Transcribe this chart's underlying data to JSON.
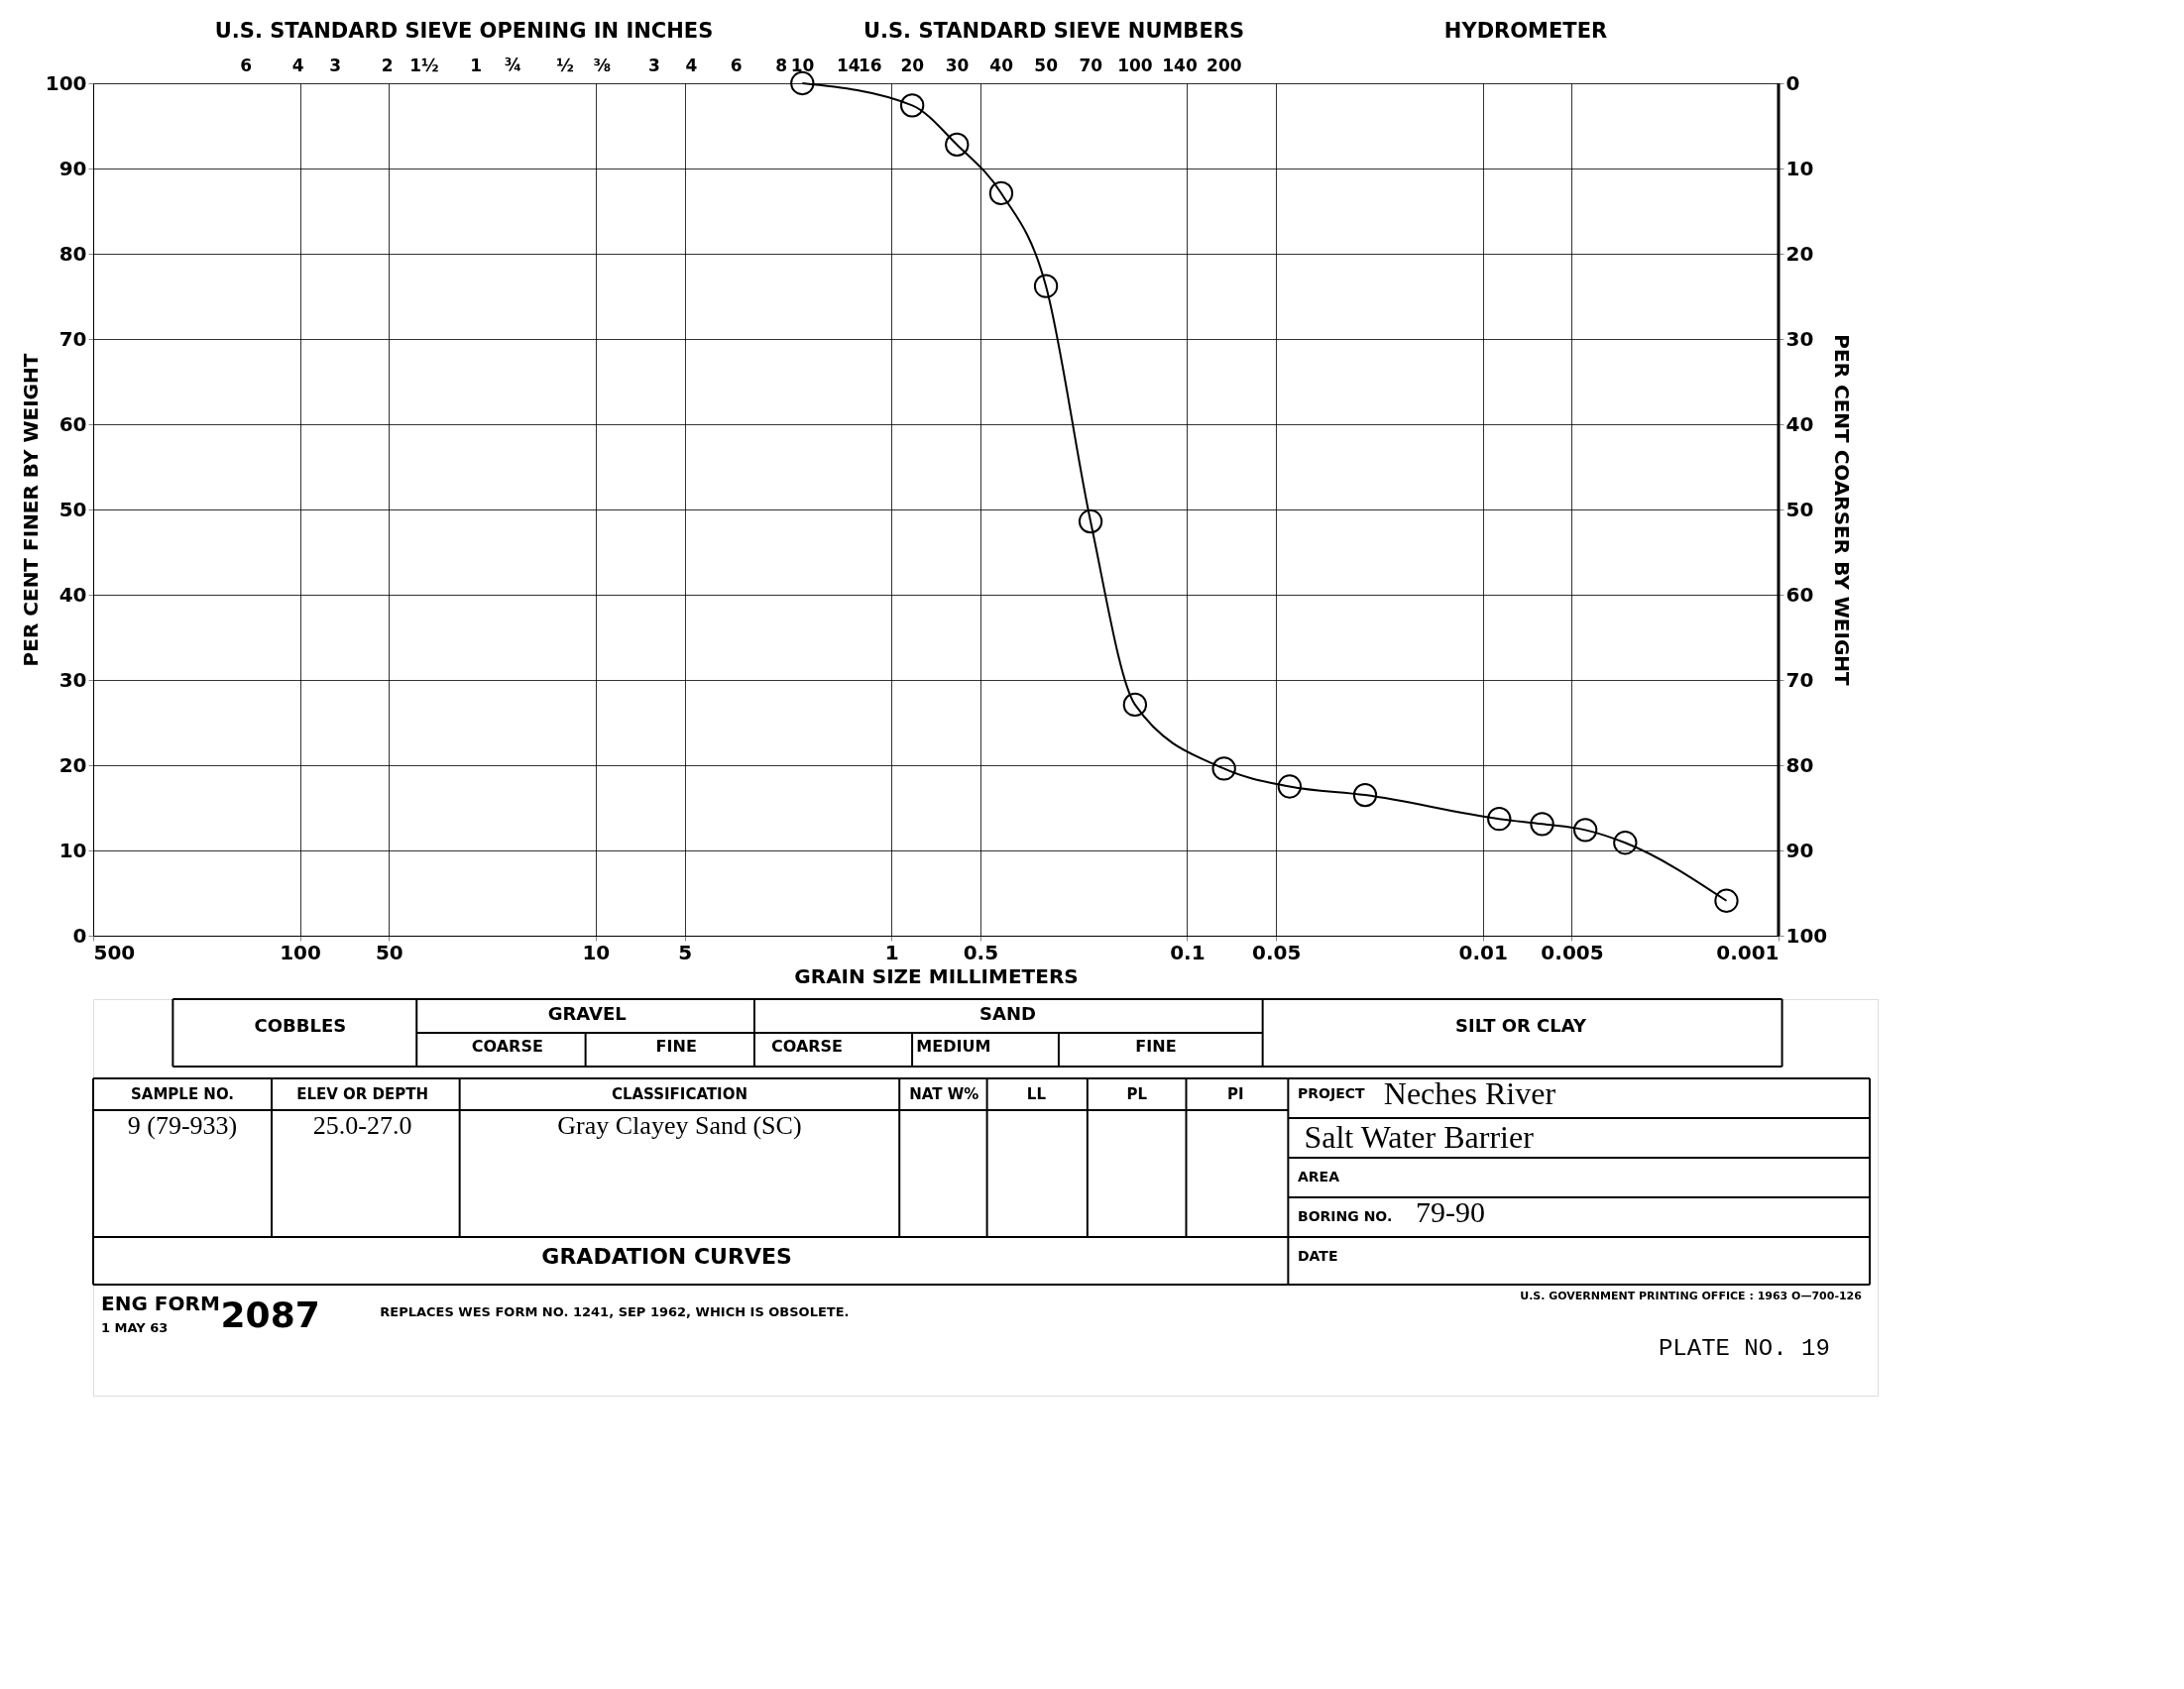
{
  "chart_data": {
    "type": "line",
    "xlabel": "GRAIN SIZE MILLIMETERS",
    "ylabel": "PER CENT FINER BY WEIGHT",
    "y2label": "PER CENT COARSER BY WEIGHT",
    "x": [
      2.0,
      0.85,
      0.6,
      0.425,
      0.3,
      0.212,
      0.15,
      0.075,
      0.045,
      0.025,
      0.0088,
      0.0063,
      0.0045,
      0.0033,
      0.0015
    ],
    "series": [
      {
        "color": "#000000",
        "values": [
          100,
          97.4,
          92.8,
          87.1,
          76.2,
          48.6,
          27.1,
          19.6,
          17.5,
          16.5,
          13.7,
          13.1,
          12.4,
          10.9,
          4.1
        ]
      }
    ],
    "xlim": [
      500,
      0.001
    ],
    "xticks": [
      500,
      100,
      50,
      10,
      5,
      1,
      0.5,
      0.1,
      0.05,
      0.01,
      0.005,
      0.001
    ],
    "ylim": [
      0,
      100
    ],
    "yticks": [
      0,
      10,
      20,
      30,
      40,
      50,
      60,
      70,
      80,
      90,
      100
    ],
    "y2lim": [
      100,
      0
    ],
    "y2ticks": [
      0,
      10,
      20,
      30,
      40,
      50,
      60,
      70,
      80,
      90,
      100
    ],
    "log": "x",
    "grid": true,
    "marker": "circle",
    "line_style": "solid",
    "annotations": [
      "U.S. STANDARD SIEVE OPENING IN INCHES",
      "U.S. STANDARD SIEVE NUMBERS",
      "HYDROMETER",
      "COBBLES",
      "GRAVEL",
      "COARSE",
      "FINE",
      "SAND",
      "COARSE",
      "MEDIUM",
      "FINE",
      "SILT OR CLAY",
      "SAMPLE NO.",
      "ELEV OR DEPTH",
      "CLASSIFICATION",
      "NAT W%",
      "LL",
      "PL",
      "PI",
      "9 (79-933)",
      "25.0-27.0",
      "Gray Clayey Sand (SC)",
      "PROJECT",
      "Neches River",
      "Salt Water Barrier",
      "AREA",
      "BORING NO.",
      "79-90",
      "DATE",
      "GRADATION CURVES",
      "ENG FORM",
      "1 MAY 63",
      "2087",
      "REPLACES WES FORM NO. 1241, SEP 1962, WHICH IS OBSOLETE.",
      "U.S. GOVERNMENT PRINTING OFFICE : 1963 O—700-126",
      "PLATE NO. 19",
      "6",
      "4",
      "3",
      "2",
      "1½",
      "1",
      "¾",
      "½",
      "⅜",
      "3",
      "4",
      "6",
      "8",
      "10",
      "14",
      "16",
      "20",
      "30",
      "40",
      "50",
      "70",
      "100",
      "140",
      "200"
    ]
  }
}
